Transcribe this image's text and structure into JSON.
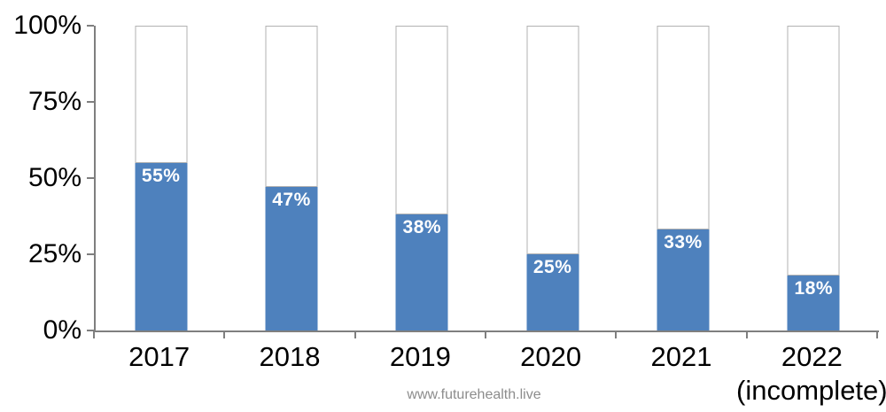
{
  "chart_data": {
    "type": "bar",
    "subtype": "percent-stacked-column",
    "categories": [
      "2017",
      "2018",
      "2019",
      "2020",
      "2021",
      "2022"
    ],
    "category_note": "(incomplete)",
    "category_note_index": 5,
    "values": [
      55,
      47,
      38,
      25,
      33,
      18
    ],
    "bar_labels": [
      "55%",
      "47%",
      "38%",
      "25%",
      "33%",
      "18%"
    ],
    "remainder_values": [
      45,
      53,
      62,
      75,
      67,
      82
    ],
    "ylim": [
      0,
      100
    ],
    "yticks": [
      0,
      25,
      50,
      75,
      100
    ],
    "ytick_labels": [
      "0%",
      "25%",
      "50%",
      "75%",
      "100%"
    ],
    "grid": false,
    "legend": "none",
    "title": "",
    "xlabel": "",
    "ylabel": "",
    "colors": {
      "filled": "#4e81bd",
      "remainder_fill": "#ffffff",
      "remainder_border": "#b2b2b2",
      "axis": "#7f7f7f",
      "label_text": "#ffffff",
      "tick_text": "#000000"
    }
  },
  "footer": {
    "watermark": "www.futurehealth.live"
  }
}
